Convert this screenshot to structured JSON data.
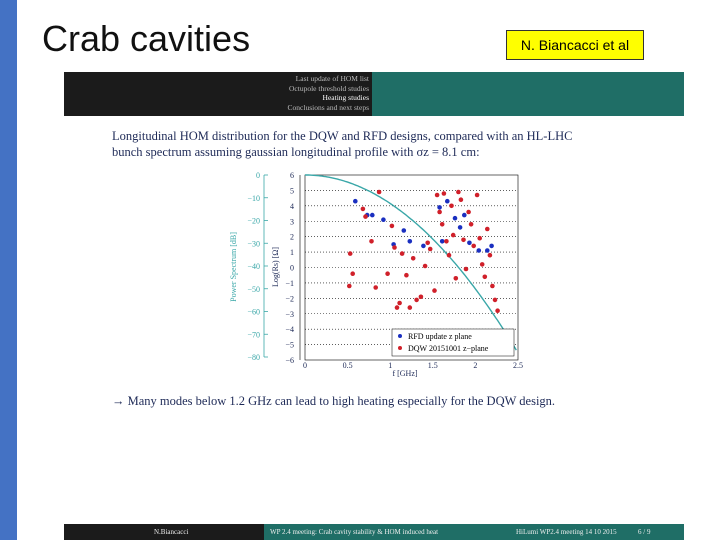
{
  "slide": {
    "title": "Crab cavities",
    "author": "N. Biancacci et al"
  },
  "inner_slide": {
    "nav": [
      "Last update of HOM list",
      "Octupole threshold studies",
      "Heating studies",
      "Conclusions and next steps"
    ],
    "nav_active_index": 2,
    "caption_line1": "Longitudinal HOM distribution for the DQW and RFD designs, compared with an HL-LHC",
    "caption_line2": "bunch spectrum assuming gaussian longitudinal profile with σz = 8.1 cm:",
    "bullet": "→ Many modes below 1.2 GHz can lead to high heating especially for the DQW design.",
    "footer_left": "N.Biancacci",
    "footer_mid": "WP 2.4 meeting: Crab cavity stability & HOM induced heat",
    "footer_right": "HiLumi WP2.4 meeting 14 10 2015",
    "footer_page": "6 / 9"
  },
  "chart_data": {
    "type": "scatter",
    "xlabel": "f [GHz]",
    "ylabel_left": "Power Spectrum [dB]",
    "ylabel_right": "Log(Rs) [Ω]",
    "xlim": [
      0,
      2.5
    ],
    "ylim_right": [
      -6,
      6
    ],
    "ylim_left": [
      -80,
      0
    ],
    "x_ticks": [
      "0",
      "0.5",
      "1",
      "1.5",
      "2",
      "2.5"
    ],
    "y_ticks_right": [
      "6",
      "5",
      "4",
      "3",
      "2",
      "1",
      "0",
      "−1",
      "−2",
      "−3",
      "−4",
      "−5",
      "−6"
    ],
    "y_ticks_left": [
      "0",
      "−10",
      "−20",
      "−30",
      "−40",
      "−50",
      "−60",
      "−70",
      "−80"
    ],
    "legend": [
      "RFD update z plane",
      "DQW 20151001 z−plane"
    ],
    "spectrum_color": "#3aa7a8",
    "series": [
      {
        "name": "RFD update z plane",
        "color": "#1a2fc0",
        "points": [
          [
            0.59,
            4.3
          ],
          [
            0.73,
            3.4
          ],
          [
            0.79,
            3.4
          ],
          [
            0.92,
            3.1
          ],
          [
            1.04,
            1.5
          ],
          [
            1.16,
            2.4
          ],
          [
            1.23,
            1.7
          ],
          [
            1.39,
            1.4
          ],
          [
            1.58,
            3.9
          ],
          [
            1.61,
            1.7
          ],
          [
            1.67,
            4.3
          ],
          [
            1.76,
            3.2
          ],
          [
            1.82,
            2.6
          ],
          [
            1.87,
            3.4
          ],
          [
            1.93,
            1.6
          ],
          [
            2.04,
            1.1
          ],
          [
            2.14,
            1.1
          ],
          [
            2.19,
            1.4
          ]
        ]
      },
      {
        "name": "DQW 20151001 z−plane",
        "color": "#d0202a",
        "points": [
          [
            0.52,
            -1.2
          ],
          [
            0.53,
            0.9
          ],
          [
            0.56,
            -0.4
          ],
          [
            0.68,
            3.8
          ],
          [
            0.71,
            3.3
          ],
          [
            0.78,
            1.7
          ],
          [
            0.83,
            -1.3
          ],
          [
            0.87,
            4.9
          ],
          [
            0.97,
            -0.4
          ],
          [
            1.02,
            2.7
          ],
          [
            1.05,
            1.3
          ],
          [
            1.08,
            -2.6
          ],
          [
            1.11,
            -2.3
          ],
          [
            1.14,
            0.9
          ],
          [
            1.19,
            -0.5
          ],
          [
            1.23,
            -2.6
          ],
          [
            1.27,
            0.6
          ],
          [
            1.31,
            -2.1
          ],
          [
            1.36,
            -1.9
          ],
          [
            1.41,
            0.1
          ],
          [
            1.44,
            1.6
          ],
          [
            1.47,
            1.2
          ],
          [
            1.52,
            -1.5
          ],
          [
            1.55,
            4.7
          ],
          [
            1.58,
            3.6
          ],
          [
            1.61,
            2.8
          ],
          [
            1.63,
            4.8
          ],
          [
            1.66,
            1.7
          ],
          [
            1.69,
            0.8
          ],
          [
            1.72,
            4.0
          ],
          [
            1.74,
            2.1
          ],
          [
            1.77,
            -0.7
          ],
          [
            1.8,
            4.9
          ],
          [
            1.83,
            4.4
          ],
          [
            1.86,
            1.8
          ],
          [
            1.89,
            -0.1
          ],
          [
            1.92,
            3.6
          ],
          [
            1.95,
            2.8
          ],
          [
            1.98,
            1.4
          ],
          [
            2.02,
            4.7
          ],
          [
            2.05,
            1.9
          ],
          [
            2.08,
            0.2
          ],
          [
            2.11,
            -0.6
          ],
          [
            2.14,
            2.5
          ],
          [
            2.17,
            0.8
          ],
          [
            2.2,
            -1.2
          ],
          [
            2.23,
            -2.1
          ],
          [
            2.26,
            -2.8
          ]
        ]
      }
    ]
  }
}
